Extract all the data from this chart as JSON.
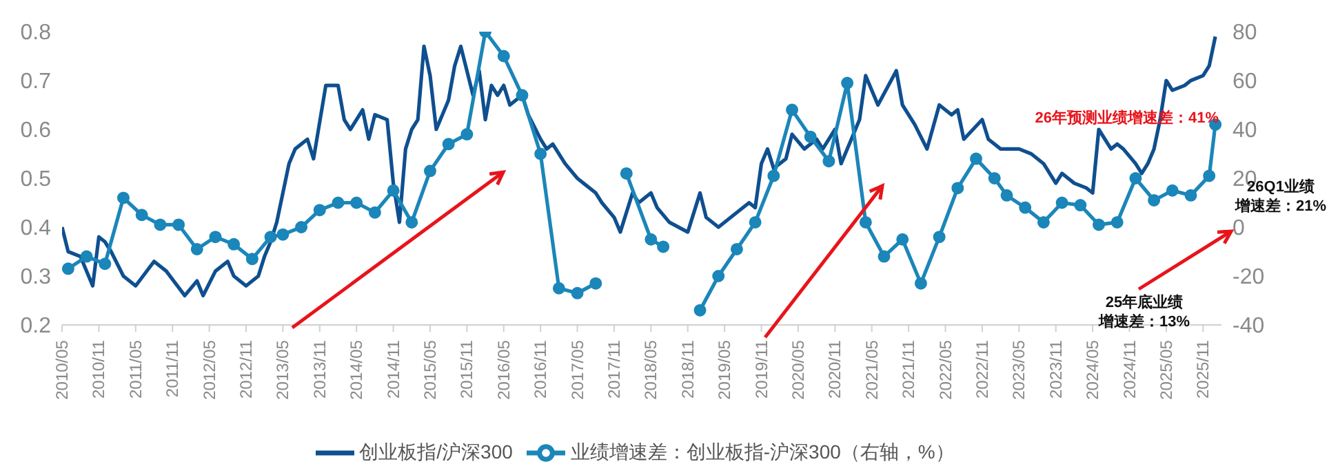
{
  "chart_data": {
    "type": "line",
    "xlim": [
      "2010-05",
      "2026-02"
    ],
    "xticks": [
      {
        "value": "2010-05",
        "label": "2010/05"
      },
      {
        "value": "2010-11",
        "label": "2010/11"
      },
      {
        "value": "2011-05",
        "label": "2011/05"
      },
      {
        "value": "2011-11",
        "label": "2011/11"
      },
      {
        "value": "2012-05",
        "label": "2012/05"
      },
      {
        "value": "2012-11",
        "label": "2012/11"
      },
      {
        "value": "2013-05",
        "label": "2013/05"
      },
      {
        "value": "2013-11",
        "label": "2013/11"
      },
      {
        "value": "2014-05",
        "label": "2014/05"
      },
      {
        "value": "2014-11",
        "label": "2014/11"
      },
      {
        "value": "2015-05",
        "label": "2015/05"
      },
      {
        "value": "2015-11",
        "label": "2015/11"
      },
      {
        "value": "2016-05",
        "label": "2016/05"
      },
      {
        "value": "2016-11",
        "label": "2016/11"
      },
      {
        "value": "2017-05",
        "label": "2017/05"
      },
      {
        "value": "2017-11",
        "label": "2017/11"
      },
      {
        "value": "2018-05",
        "label": "2018/05"
      },
      {
        "value": "2018-11",
        "label": "2018/11"
      },
      {
        "value": "2019-05",
        "label": "2019/05"
      },
      {
        "value": "2019-11",
        "label": "2019/11"
      },
      {
        "value": "2020-05",
        "label": "2020/05"
      },
      {
        "value": "2020-11",
        "label": "2020/11"
      },
      {
        "value": "2021-05",
        "label": "2021/05"
      },
      {
        "value": "2021-11",
        "label": "2021/11"
      },
      {
        "value": "2022-05",
        "label": "2022/05"
      },
      {
        "value": "2022-11",
        "label": "2022/11"
      },
      {
        "value": "2023-05",
        "label": "2023/05"
      },
      {
        "value": "2023-11",
        "label": "2023/11"
      },
      {
        "value": "2024-05",
        "label": "2024/05"
      },
      {
        "value": "2024-11",
        "label": "2024/11"
      },
      {
        "value": "2025-05",
        "label": "2025/05"
      },
      {
        "value": "2025-11",
        "label": "2025/11"
      }
    ],
    "ylim": [
      0.2,
      0.8
    ],
    "yticks": [
      0.2,
      0.3,
      0.4,
      0.5,
      0.6,
      0.7,
      0.8
    ],
    "y2lim": [
      -40,
      80
    ],
    "y2ticks": [
      -40,
      -20,
      0,
      20,
      40,
      60,
      80
    ],
    "legend": "bottom",
    "annotations": [
      "26年预测业绩增速差：41%",
      "26Q1业绩",
      "增速差：21%",
      "25年底业绩",
      "增速差：13%"
    ],
    "series": [
      {
        "name": "创业板指/沪深300",
        "color": "#0f4f8f",
        "marker": "none",
        "x": [
          "2010-05",
          "2010-06",
          "2010-08",
          "2010-10",
          "2010-11",
          "2010-12",
          "2011-01",
          "2011-03",
          "2011-05",
          "2011-08",
          "2011-10",
          "2012-01",
          "2012-03",
          "2012-04",
          "2012-06",
          "2012-08",
          "2012-09",
          "2012-11",
          "2013-01",
          "2013-02",
          "2013-03",
          "2013-04",
          "2013-06",
          "2013-07",
          "2013-09",
          "2013-10",
          "2013-12",
          "2014-02",
          "2014-03",
          "2014-04",
          "2014-06",
          "2014-07",
          "2014-08",
          "2014-10",
          "2014-11",
          "2014-12",
          "2015-01",
          "2015-02",
          "2015-03",
          "2015-04",
          "2015-05",
          "2015-06",
          "2015-08",
          "2015-09",
          "2015-10",
          "2015-11",
          "2015-12",
          "2016-01",
          "2016-02",
          "2016-03",
          "2016-04",
          "2016-05",
          "2016-06",
          "2016-08",
          "2016-09",
          "2016-11",
          "2016-12",
          "2017-01",
          "2017-03",
          "2017-05",
          "2017-06",
          "2017-08",
          "2017-09",
          "2017-11",
          "2017-12",
          "2018-02",
          "2018-03",
          "2018-05",
          "2018-06",
          "2018-08",
          "2018-11",
          "2019-01",
          "2019-02",
          "2019-04",
          "2019-06",
          "2019-09",
          "2019-10",
          "2019-11",
          "2019-12",
          "2020-01",
          "2020-03",
          "2020-04",
          "2020-06",
          "2020-08",
          "2020-09",
          "2020-11",
          "2020-12",
          "2021-03",
          "2021-04",
          "2021-06",
          "2021-09",
          "2021-10",
          "2021-12",
          "2022-02",
          "2022-04",
          "2022-06",
          "2022-07",
          "2022-08",
          "2022-11",
          "2022-12",
          "2023-02",
          "2023-05",
          "2023-07",
          "2023-09",
          "2023-11",
          "2023-12",
          "2024-02",
          "2024-04",
          "2024-05",
          "2024-06",
          "2024-08",
          "2024-09",
          "2024-10",
          "2024-12",
          "2025-01",
          "2025-02",
          "2025-03",
          "2025-04",
          "2025-05",
          "2025-06",
          "2025-08",
          "2025-09",
          "2025-11",
          "2025-12",
          "2026-01"
        ],
        "values": [
          0.4,
          0.35,
          0.34,
          0.28,
          0.38,
          0.37,
          0.35,
          0.3,
          0.28,
          0.33,
          0.31,
          0.26,
          0.29,
          0.26,
          0.31,
          0.33,
          0.3,
          0.28,
          0.3,
          0.34,
          0.37,
          0.41,
          0.53,
          0.56,
          0.58,
          0.54,
          0.69,
          0.69,
          0.62,
          0.6,
          0.64,
          0.58,
          0.63,
          0.62,
          0.49,
          0.41,
          0.56,
          0.6,
          0.62,
          0.77,
          0.71,
          0.6,
          0.66,
          0.73,
          0.77,
          0.72,
          0.67,
          0.72,
          0.62,
          0.69,
          0.67,
          0.69,
          0.65,
          0.67,
          0.63,
          0.58,
          0.56,
          0.57,
          0.53,
          0.5,
          0.49,
          0.47,
          0.45,
          0.42,
          0.39,
          0.47,
          0.45,
          0.47,
          0.44,
          0.41,
          0.39,
          0.47,
          0.42,
          0.4,
          0.42,
          0.45,
          0.44,
          0.53,
          0.56,
          0.52,
          0.54,
          0.59,
          0.56,
          0.58,
          0.56,
          0.6,
          0.53,
          0.62,
          0.71,
          0.65,
          0.72,
          0.65,
          0.61,
          0.56,
          0.65,
          0.63,
          0.64,
          0.58,
          0.62,
          0.58,
          0.56,
          0.56,
          0.55,
          0.53,
          0.49,
          0.51,
          0.49,
          0.48,
          0.47,
          0.6,
          0.56,
          0.57,
          0.56,
          0.53,
          0.51,
          0.53,
          0.56,
          0.62,
          0.7,
          0.68,
          0.69,
          0.7,
          0.71,
          0.73,
          0.79
        ]
      },
      {
        "name": "业绩增速差：创业板指-沪深300（右轴，%）",
        "color": "#1b86b9",
        "marker": "circle",
        "axis": "y2",
        "x": [
          "2010-06",
          "2010-09",
          "2010-12",
          "2011-03",
          "2011-06",
          "2011-09",
          "2011-12",
          "2012-03",
          "2012-06",
          "2012-09",
          "2012-12",
          "2013-03",
          "2013-05",
          "2013-08",
          "2013-11",
          "2014-02",
          "2014-05",
          "2014-08",
          "2014-11",
          "2015-02",
          "2015-05",
          "2015-08",
          "2015-11",
          "2016-02",
          "2016-05",
          "2016-08",
          "2016-11",
          "2017-02",
          "2017-05",
          "2017-08",
          "2017-11",
          "2018-01",
          "2018-05",
          "2018-07",
          "2018-10",
          "2019-01",
          "2019-04",
          "2019-07",
          "2019-10",
          "2020-01",
          "2020-04",
          "2020-07",
          "2020-10",
          "2021-01",
          "2021-04",
          "2021-07",
          "2021-10",
          "2022-01",
          "2022-04",
          "2022-07",
          "2022-10",
          "2023-01",
          "2023-03",
          "2023-06",
          "2023-09",
          "2023-12",
          "2024-03",
          "2024-06",
          "2024-09",
          "2024-12",
          "2025-03",
          "2025-06",
          "2025-09",
          "2025-12",
          "2026-01"
        ],
        "values": [
          -17,
          -12,
          -15,
          12,
          5,
          1,
          1,
          -9,
          -4,
          -7,
          -13,
          -4,
          -3,
          0,
          7,
          10,
          10,
          6,
          15,
          2,
          23,
          34,
          38,
          80,
          70,
          54,
          30,
          -25,
          -27,
          -23,
          null,
          22,
          -5,
          -8,
          null,
          -34,
          -20,
          -9,
          2,
          21,
          48,
          37,
          27,
          59,
          2,
          -12,
          -5,
          -23,
          -4,
          16,
          28,
          20,
          13,
          8,
          2,
          10,
          9,
          1,
          2,
          20,
          11,
          15,
          13,
          21,
          42
        ]
      }
    ]
  }
}
